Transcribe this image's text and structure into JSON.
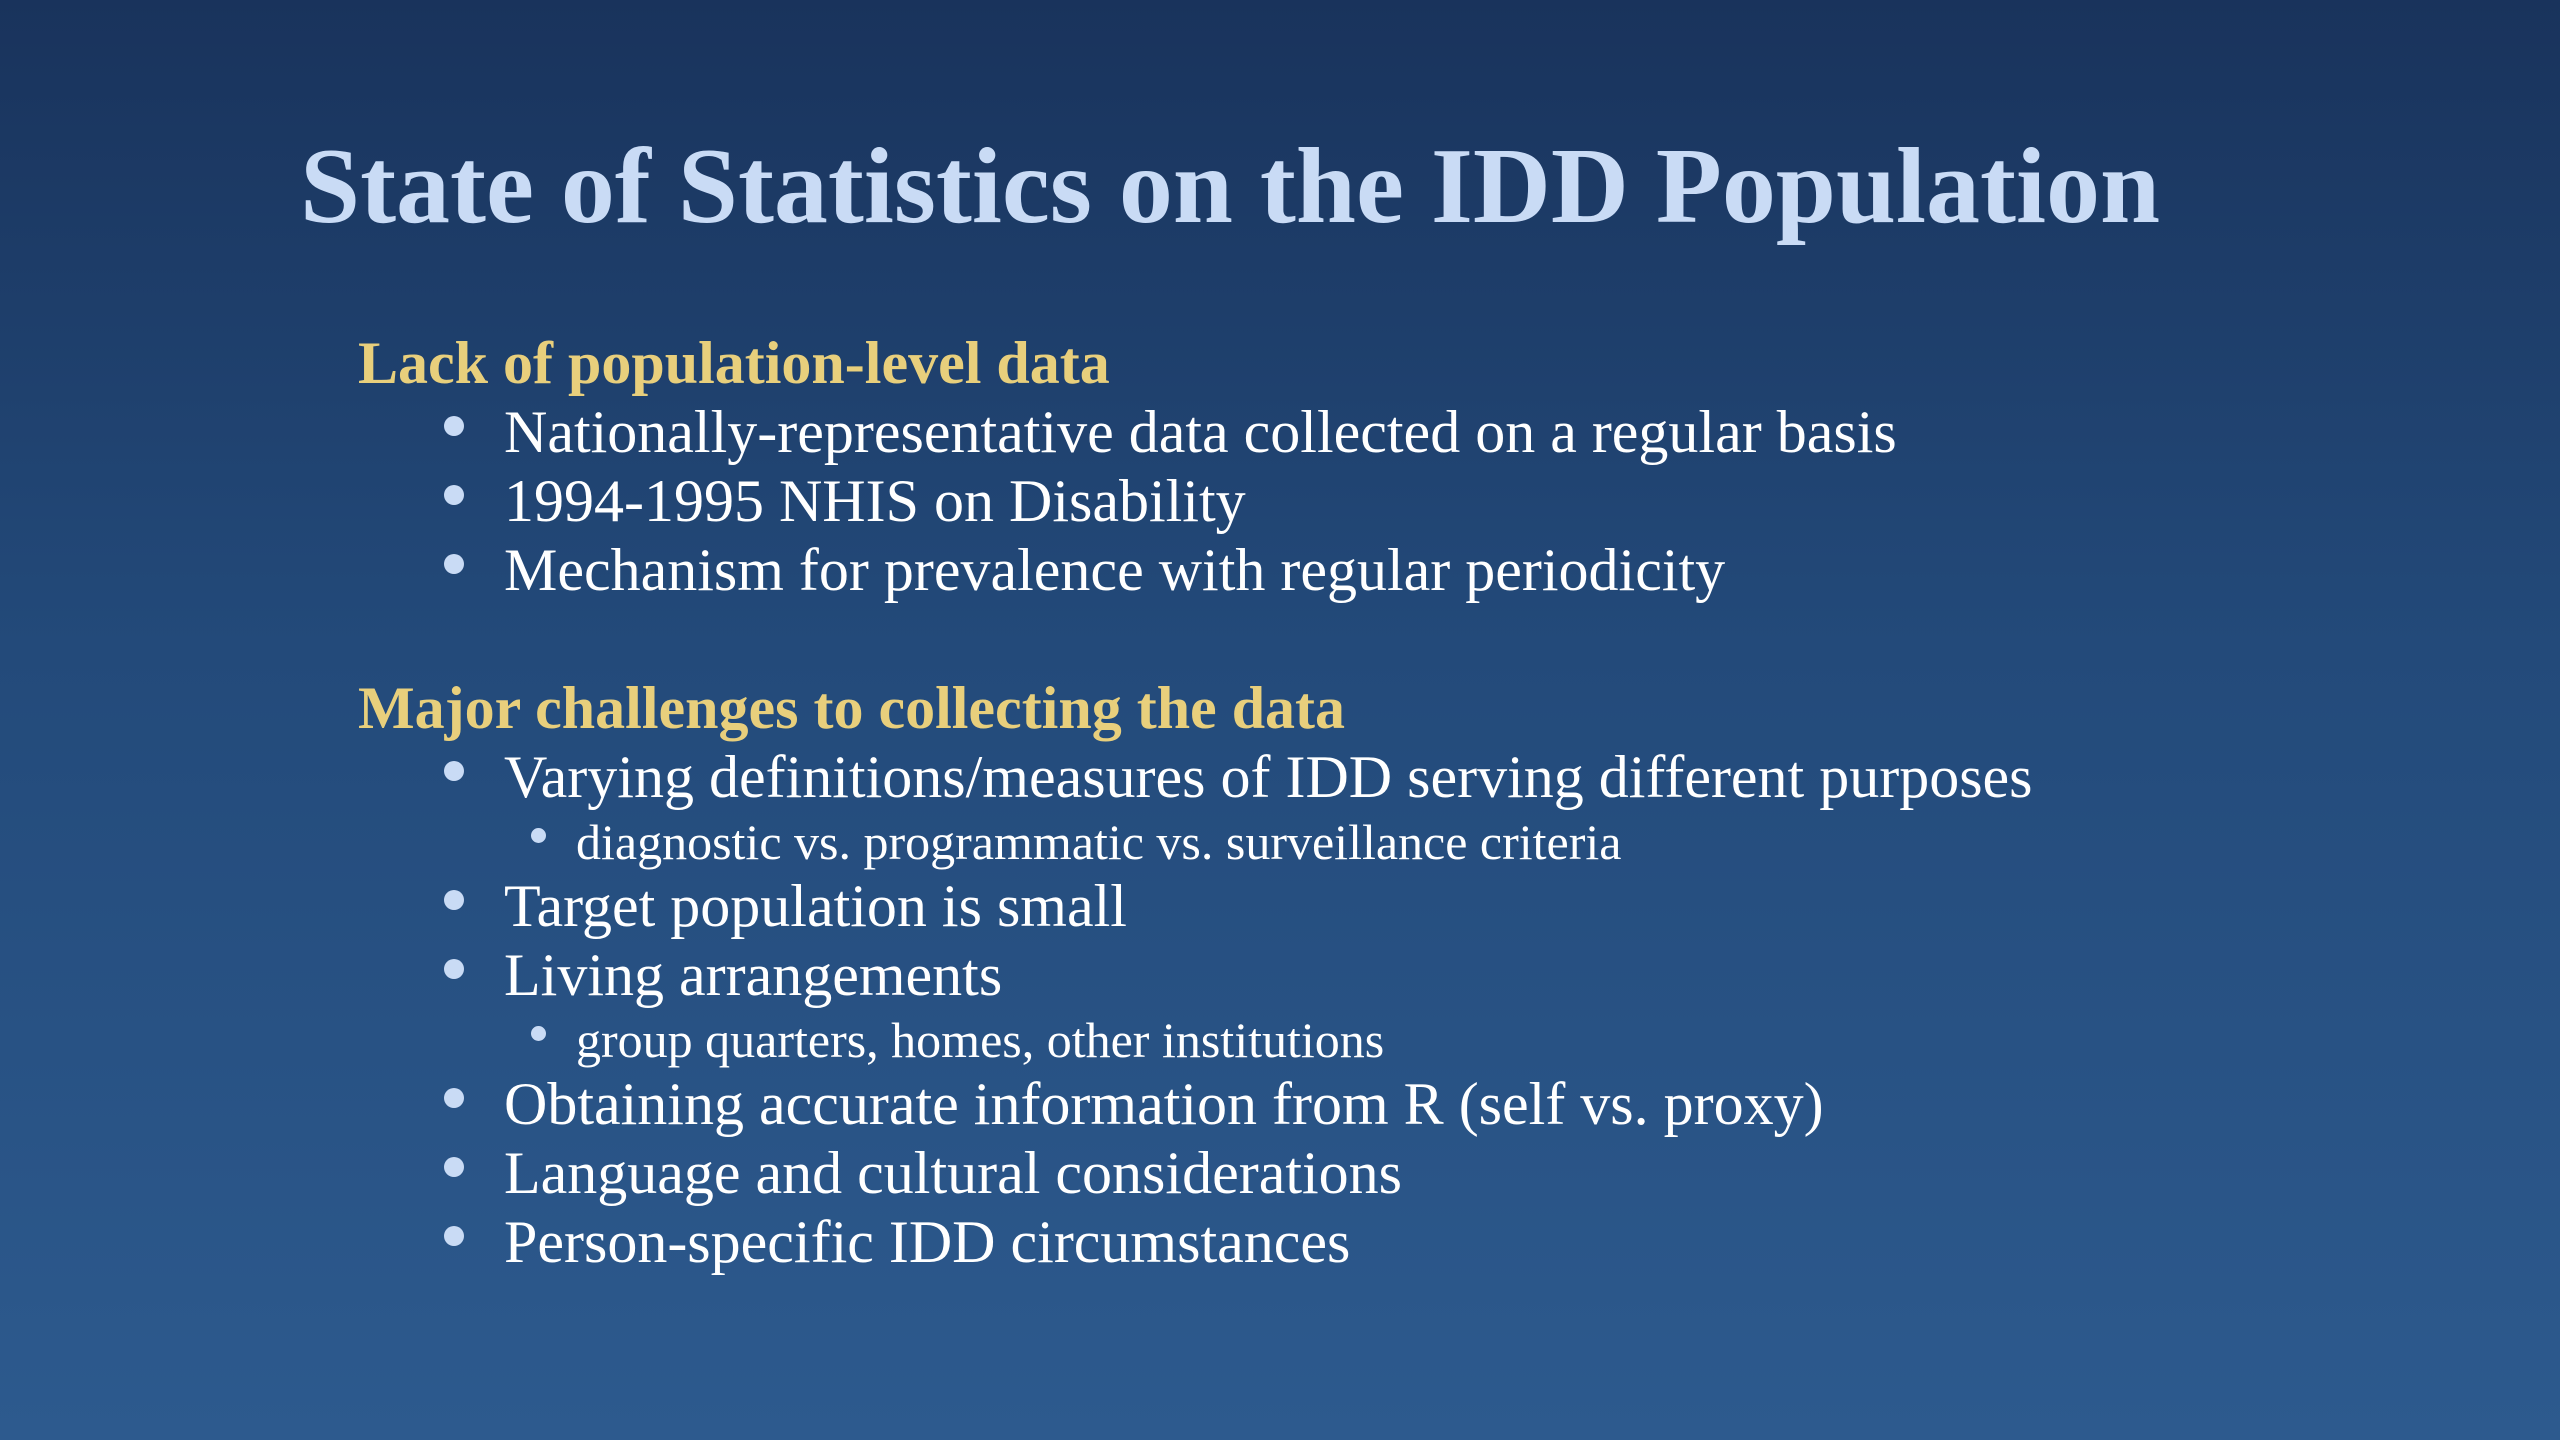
{
  "slide": {
    "title": "State of Statistics on the IDD Population",
    "sections": [
      {
        "heading": "Lack of population-level data",
        "items": [
          "Nationally-representative data collected on a regular basis",
          "1994-1995 NHIS on Disability",
          "Mechanism for prevalence with regular periodicity"
        ]
      },
      {
        "heading": "Major challenges to collecting the data",
        "items": [
          "Varying definitions/measures of IDD serving different purposes",
          "diagnostic vs. programmatic vs. surveillance criteria",
          "Target population is small",
          "Living arrangements",
          "group quarters, homes, other institutions",
          "Obtaining accurate information from R (self vs. proxy)",
          "Language and cultural considerations",
          "Person-specific IDD circumstances"
        ]
      }
    ]
  },
  "colors": {
    "title": "#c9dbf5",
    "heading": "#e8cf7c",
    "body_text": "#ffffff",
    "bullet": "#c9dbf5",
    "background_top": "#19335c",
    "background_bottom": "#2d5a8e"
  }
}
